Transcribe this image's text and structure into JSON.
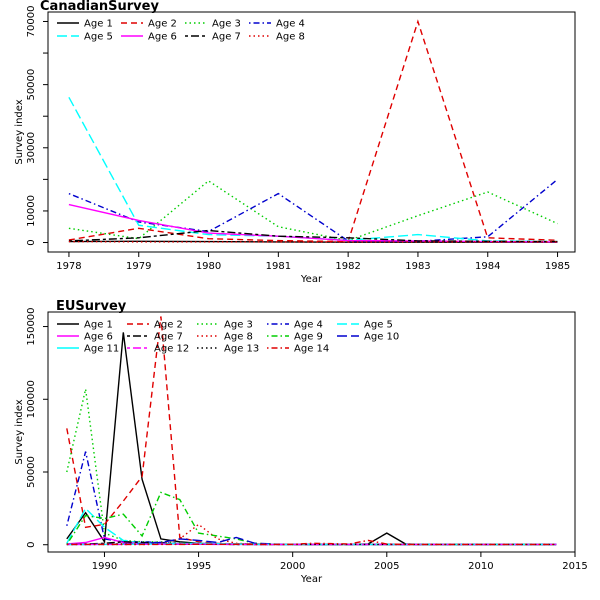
{
  "chart_data": [
    {
      "type": "line",
      "title": "CanadianSurvey",
      "xlabel": "Year",
      "ylabel": "Survey index",
      "xlim": [
        1977.7,
        1985.25
      ],
      "ylim": [
        -3000,
        73000
      ],
      "xticks": [
        1978,
        1979,
        1980,
        1981,
        1982,
        1983,
        1984,
        1985
      ],
      "yticks": [
        0,
        10000,
        30000,
        50000,
        70000
      ],
      "grid": false,
      "legend": "top-left",
      "x": [
        1978,
        1979,
        1980,
        1981,
        1982,
        1983,
        1984,
        1985
      ],
      "series": [
        {
          "name": "Age 1",
          "color": "#000000",
          "dash": "solid",
          "values": [
            300,
            400,
            300,
            200,
            100,
            100,
            100,
            100
          ]
        },
        {
          "name": "Age 2",
          "color": "#DF0000",
          "dash": "dashed",
          "values": [
            800,
            4500,
            1200,
            600,
            300,
            70000,
            1500,
            700
          ]
        },
        {
          "name": "Age 3",
          "color": "#00CD00",
          "dash": "dotted",
          "values": [
            4500,
            1200,
            19500,
            5000,
            600,
            8500,
            16000,
            6000
          ]
        },
        {
          "name": "Age 4",
          "color": "#0000CD",
          "dash": "dotdash",
          "values": [
            15500,
            6500,
            3500,
            15500,
            500,
            400,
            1800,
            20000
          ]
        },
        {
          "name": "Age 5",
          "color": "#00FFFF",
          "dash": "longdash",
          "values": [
            46000,
            5500,
            2500,
            2000,
            700,
            2500,
            500,
            300
          ]
        },
        {
          "name": "Age 6",
          "color": "#FF00FF",
          "dash": "solid",
          "values": [
            12000,
            7000,
            3000,
            2000,
            600,
            500,
            300,
            200
          ]
        },
        {
          "name": "Age 7",
          "color": "#000000",
          "dash": "twodash",
          "values": [
            500,
            1500,
            3800,
            2000,
            1500,
            500,
            400,
            300
          ]
        },
        {
          "name": "Age 8",
          "color": "#DF0000",
          "dash": "dotted",
          "values": [
            300,
            200,
            200,
            200,
            200,
            200,
            200,
            200
          ]
        }
      ]
    },
    {
      "type": "line",
      "title": "EUSurvey",
      "xlabel": "Year",
      "ylabel": "Survey index",
      "xlim": [
        1987,
        2015
      ],
      "ylim": [
        -5000,
        160000
      ],
      "xticks": [
        1990,
        1995,
        2000,
        2005,
        2010,
        2015
      ],
      "yticks": [
        0,
        50000,
        100000,
        150000
      ],
      "grid": false,
      "legend": "top-left",
      "x": [
        1988,
        1989,
        1990,
        1991,
        1992,
        1993,
        1994,
        1995,
        1996,
        1997,
        1998,
        1999,
        2000,
        2001,
        2002,
        2003,
        2004,
        2005,
        2006,
        2007,
        2008,
        2009,
        2010,
        2011,
        2012,
        2013,
        2014
      ],
      "series": [
        {
          "name": "Age 1",
          "color": "#000000",
          "dash": "solid",
          "values": [
            4000,
            22000,
            2000,
            146000,
            45000,
            4000,
            2000,
            1000,
            500,
            500,
            400,
            300,
            200,
            200,
            200,
            200,
            500,
            8000,
            500,
            200,
            200,
            200,
            200,
            200,
            200,
            200,
            200
          ]
        },
        {
          "name": "Age 2",
          "color": "#DF0000",
          "dash": "dashed",
          "values": [
            80000,
            12000,
            14000,
            30000,
            47000,
            157000,
            5000,
            2000,
            1000,
            500,
            400,
            300,
            200,
            300,
            200,
            200,
            300,
            200,
            200,
            200,
            200,
            200,
            200,
            200,
            200,
            200,
            200
          ]
        },
        {
          "name": "Age 3",
          "color": "#00CD00",
          "dash": "dotted",
          "values": [
            50000,
            107000,
            8000,
            3000,
            2000,
            2000,
            1000,
            500,
            400,
            300,
            300,
            200,
            200,
            200,
            200,
            200,
            200,
            200,
            200,
            200,
            200,
            200,
            200,
            200,
            200,
            200,
            200
          ]
        },
        {
          "name": "Age 4",
          "color": "#0000CD",
          "dash": "dotdash",
          "values": [
            13000,
            64000,
            4000,
            2000,
            2000,
            1500,
            800,
            500,
            400,
            300,
            200,
            200,
            200,
            200,
            200,
            200,
            200,
            200,
            200,
            200,
            200,
            200,
            200,
            200,
            200,
            200,
            200
          ]
        },
        {
          "name": "Age 5",
          "color": "#00FFFF",
          "dash": "longdash",
          "values": [
            1000,
            25000,
            12000,
            3000,
            1000,
            800,
            500,
            400,
            300,
            200,
            200,
            200,
            200,
            200,
            200,
            200,
            200,
            200,
            200,
            200,
            200,
            200,
            200,
            200,
            200,
            200,
            200
          ]
        },
        {
          "name": "Age 6",
          "color": "#FF00FF",
          "dash": "solid",
          "values": [
            500,
            1500,
            5000,
            1500,
            800,
            500,
            400,
            300,
            200,
            200,
            200,
            200,
            200,
            200,
            200,
            200,
            200,
            200,
            200,
            200,
            200,
            200,
            200,
            200,
            200,
            200,
            200
          ]
        },
        {
          "name": "Age 7",
          "color": "#000000",
          "dash": "twodash",
          "values": [
            300,
            500,
            1000,
            2000,
            1500,
            1000,
            500,
            400,
            300,
            200,
            200,
            200,
            200,
            200,
            200,
            200,
            200,
            200,
            200,
            200,
            200,
            200,
            200,
            200,
            200,
            200,
            200
          ]
        },
        {
          "name": "Age 8",
          "color": "#DF0000",
          "dash": "dotted",
          "values": [
            200,
            300,
            500,
            800,
            500,
            1000,
            4000,
            14000,
            4000,
            1000,
            400,
            300,
            200,
            200,
            200,
            200,
            200,
            200,
            200,
            200,
            200,
            200,
            200,
            200,
            200,
            200,
            200
          ]
        },
        {
          "name": "Age 9",
          "color": "#00CD00",
          "dash": "dotdash",
          "values": [
            200,
            20000,
            18000,
            21000,
            6000,
            36000,
            31000,
            8000,
            6000,
            4000,
            1000,
            400,
            200,
            200,
            200,
            200,
            200,
            200,
            200,
            200,
            200,
            200,
            200,
            200,
            200,
            200,
            200
          ]
        },
        {
          "name": "Age 10",
          "color": "#0000CD",
          "dash": "longdash",
          "values": [
            200,
            200,
            300,
            500,
            800,
            1500,
            4000,
            3000,
            1500,
            5000,
            1000,
            500,
            300,
            200,
            200,
            200,
            200,
            200,
            200,
            200,
            200,
            200,
            200,
            200,
            200,
            200,
            200
          ]
        },
        {
          "name": "Age 11",
          "color": "#00FFFF",
          "dash": "solid",
          "values": [
            200,
            200,
            200,
            300,
            400,
            500,
            800,
            1000,
            800,
            500,
            300,
            300,
            200,
            200,
            200,
            200,
            200,
            200,
            200,
            200,
            200,
            200,
            200,
            200,
            200,
            200,
            200
          ]
        },
        {
          "name": "Age 12",
          "color": "#FF00FF",
          "dash": "twodash",
          "values": [
            200,
            200,
            200,
            200,
            300,
            400,
            500,
            500,
            400,
            300,
            200,
            200,
            200,
            200,
            200,
            200,
            200,
            200,
            200,
            200,
            200,
            200,
            200,
            200,
            200,
            200,
            200
          ]
        },
        {
          "name": "Age 13",
          "color": "#000000",
          "dash": "dotted",
          "values": [
            200,
            200,
            200,
            200,
            200,
            300,
            300,
            300,
            300,
            200,
            200,
            200,
            200,
            200,
            200,
            200,
            200,
            200,
            200,
            200,
            200,
            200,
            200,
            200,
            200,
            200,
            200
          ]
        },
        {
          "name": "Age 14",
          "color": "#DF0000",
          "dash": "dotdash",
          "values": [
            200,
            200,
            200,
            200,
            200,
            200,
            200,
            300,
            300,
            300,
            200,
            200,
            300,
            1000,
            800,
            500,
            3000,
            500,
            200,
            200,
            200,
            200,
            200,
            200,
            200,
            200,
            200
          ]
        }
      ]
    }
  ]
}
